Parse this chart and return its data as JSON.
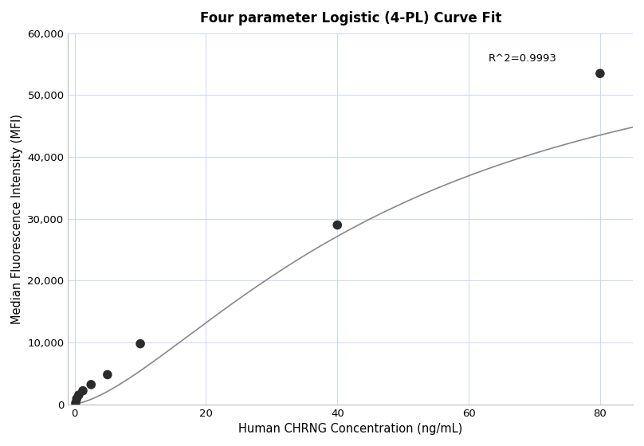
{
  "title": "Four parameter Logistic (4-PL) Curve Fit",
  "xlabel": "Human CHRNG Concentration (ng/mL)",
  "ylabel": "Median Fluorescence Intensity (MFI)",
  "scatter_x": [
    0.156,
    0.313,
    0.625,
    1.25,
    2.5,
    5.0,
    10.0,
    40.0,
    80.0
  ],
  "scatter_y": [
    200,
    900,
    1500,
    2200,
    3200,
    4800,
    9800,
    29000,
    53500
  ],
  "xlim": [
    -1,
    85
  ],
  "ylim": [
    0,
    60000
  ],
  "xticks": [
    0,
    20,
    40,
    60,
    80
  ],
  "yticks": [
    0,
    10000,
    20000,
    30000,
    40000,
    50000,
    60000
  ],
  "ytick_labels": [
    "0",
    "10,000",
    "20,000",
    "30,000",
    "40,000",
    "50,000",
    "60,000"
  ],
  "r_squared_text": "R^2=0.9993",
  "r_squared_x": 63,
  "r_squared_y": 55500,
  "dot_color": "#2b2b2b",
  "dot_size": 70,
  "line_color": "#888888",
  "line_width": 1.2,
  "grid_color": "#c8d4e8",
  "grid_alpha": 0.9,
  "background_color": "#ffffff",
  "title_fontsize": 12,
  "label_fontsize": 10.5,
  "tick_fontsize": 9.5,
  "annotation_fontsize": 9.5
}
